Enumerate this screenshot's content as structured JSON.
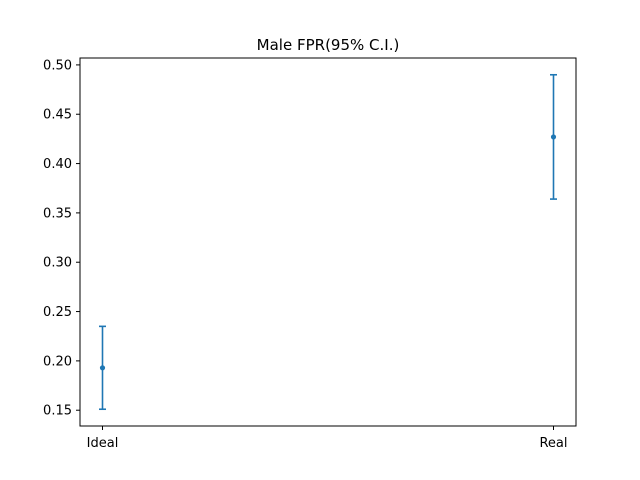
{
  "chart_data": {
    "type": "errorbar",
    "title": "Male FPR(95% C.I.)",
    "xlabel": "",
    "ylabel": "",
    "categories": [
      "Ideal",
      "Real"
    ],
    "series": [
      {
        "values": [
          0.193,
          0.427
        ],
        "ci_low": [
          0.151,
          0.364
        ],
        "ci_high": [
          0.235,
          0.49
        ]
      }
    ],
    "ylim": [
      0.134,
      0.507
    ],
    "yticks": [
      "0.15",
      "0.20",
      "0.25",
      "0.30",
      "0.35",
      "0.40",
      "0.45",
      "0.50"
    ],
    "grid": false,
    "legend": "none",
    "color": "#1f77b4"
  }
}
